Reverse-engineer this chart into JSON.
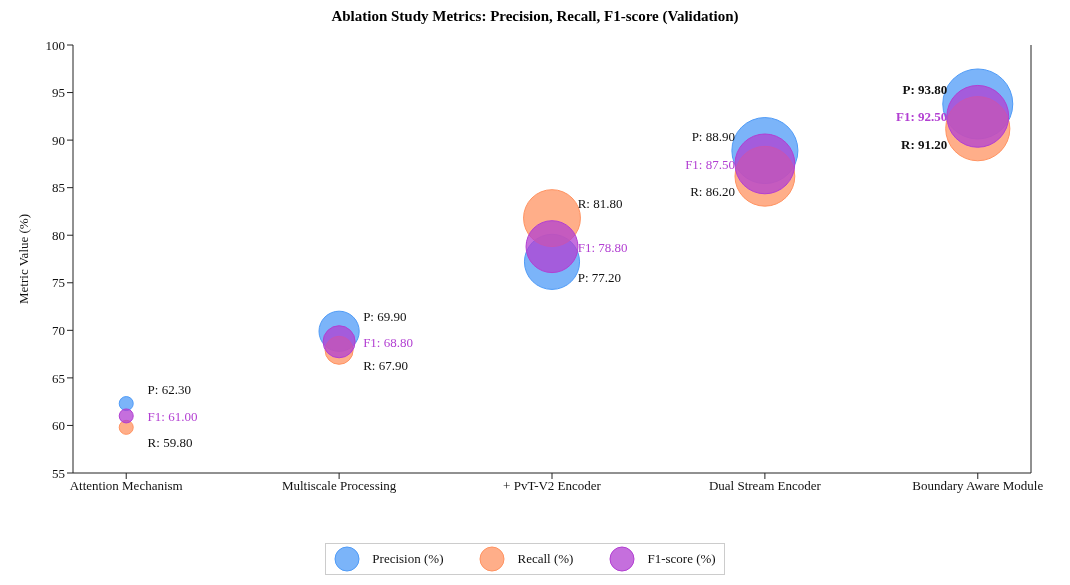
{
  "chart_data": {
    "type": "bubble",
    "title": "Ablation Study Metrics: Precision, Recall, F1-score (Validation)",
    "ylabel": "Metric Value (%)",
    "categories": [
      "Attention Mechanism",
      "Multiscale Processing",
      "+ PvT-V2 Encoder",
      "Dual Stream Encoder",
      "Boundary Aware Module"
    ],
    "ylim": [
      55,
      100
    ],
    "yticks": [
      55,
      60,
      65,
      70,
      75,
      80,
      85,
      90,
      95,
      100
    ],
    "grid": false,
    "legend": "bottom",
    "marker": "circle",
    "series": [
      {
        "name": "Precision (%)",
        "color": "#4f9bf7",
        "values": [
          62.3,
          69.9,
          77.2,
          88.9,
          93.8
        ],
        "sizes": [
          0.04,
          0.33,
          0.62,
          0.89,
          1
        ],
        "value_labels": [
          "P: 62.30",
          "P: 69.90",
          "P: 77.20",
          "P: 88.90",
          "P: 93.80"
        ]
      },
      {
        "name": "Recall (%)",
        "color": "#ff9361",
        "values": [
          59.8,
          67.9,
          81.8,
          86.2,
          91.2
        ],
        "sizes": [
          0.04,
          0.16,
          0.66,
          0.73,
          0.84
        ],
        "value_labels": [
          "R: 59.80",
          "R: 67.90",
          "R: 81.80",
          "R: 86.20",
          "R: 91.20"
        ]
      },
      {
        "name": "F1-score (%)",
        "color": "#b23fd2",
        "values": [
          61.0,
          68.8,
          78.8,
          87.5,
          92.5
        ],
        "sizes": [
          0.04,
          0.21,
          0.55,
          0.73,
          0.78
        ],
        "value_labels": [
          "F1: 61.00",
          "F1: 68.80",
          "F1: 78.80",
          "F1: 87.50",
          "F1: 92.50"
        ]
      }
    ]
  }
}
